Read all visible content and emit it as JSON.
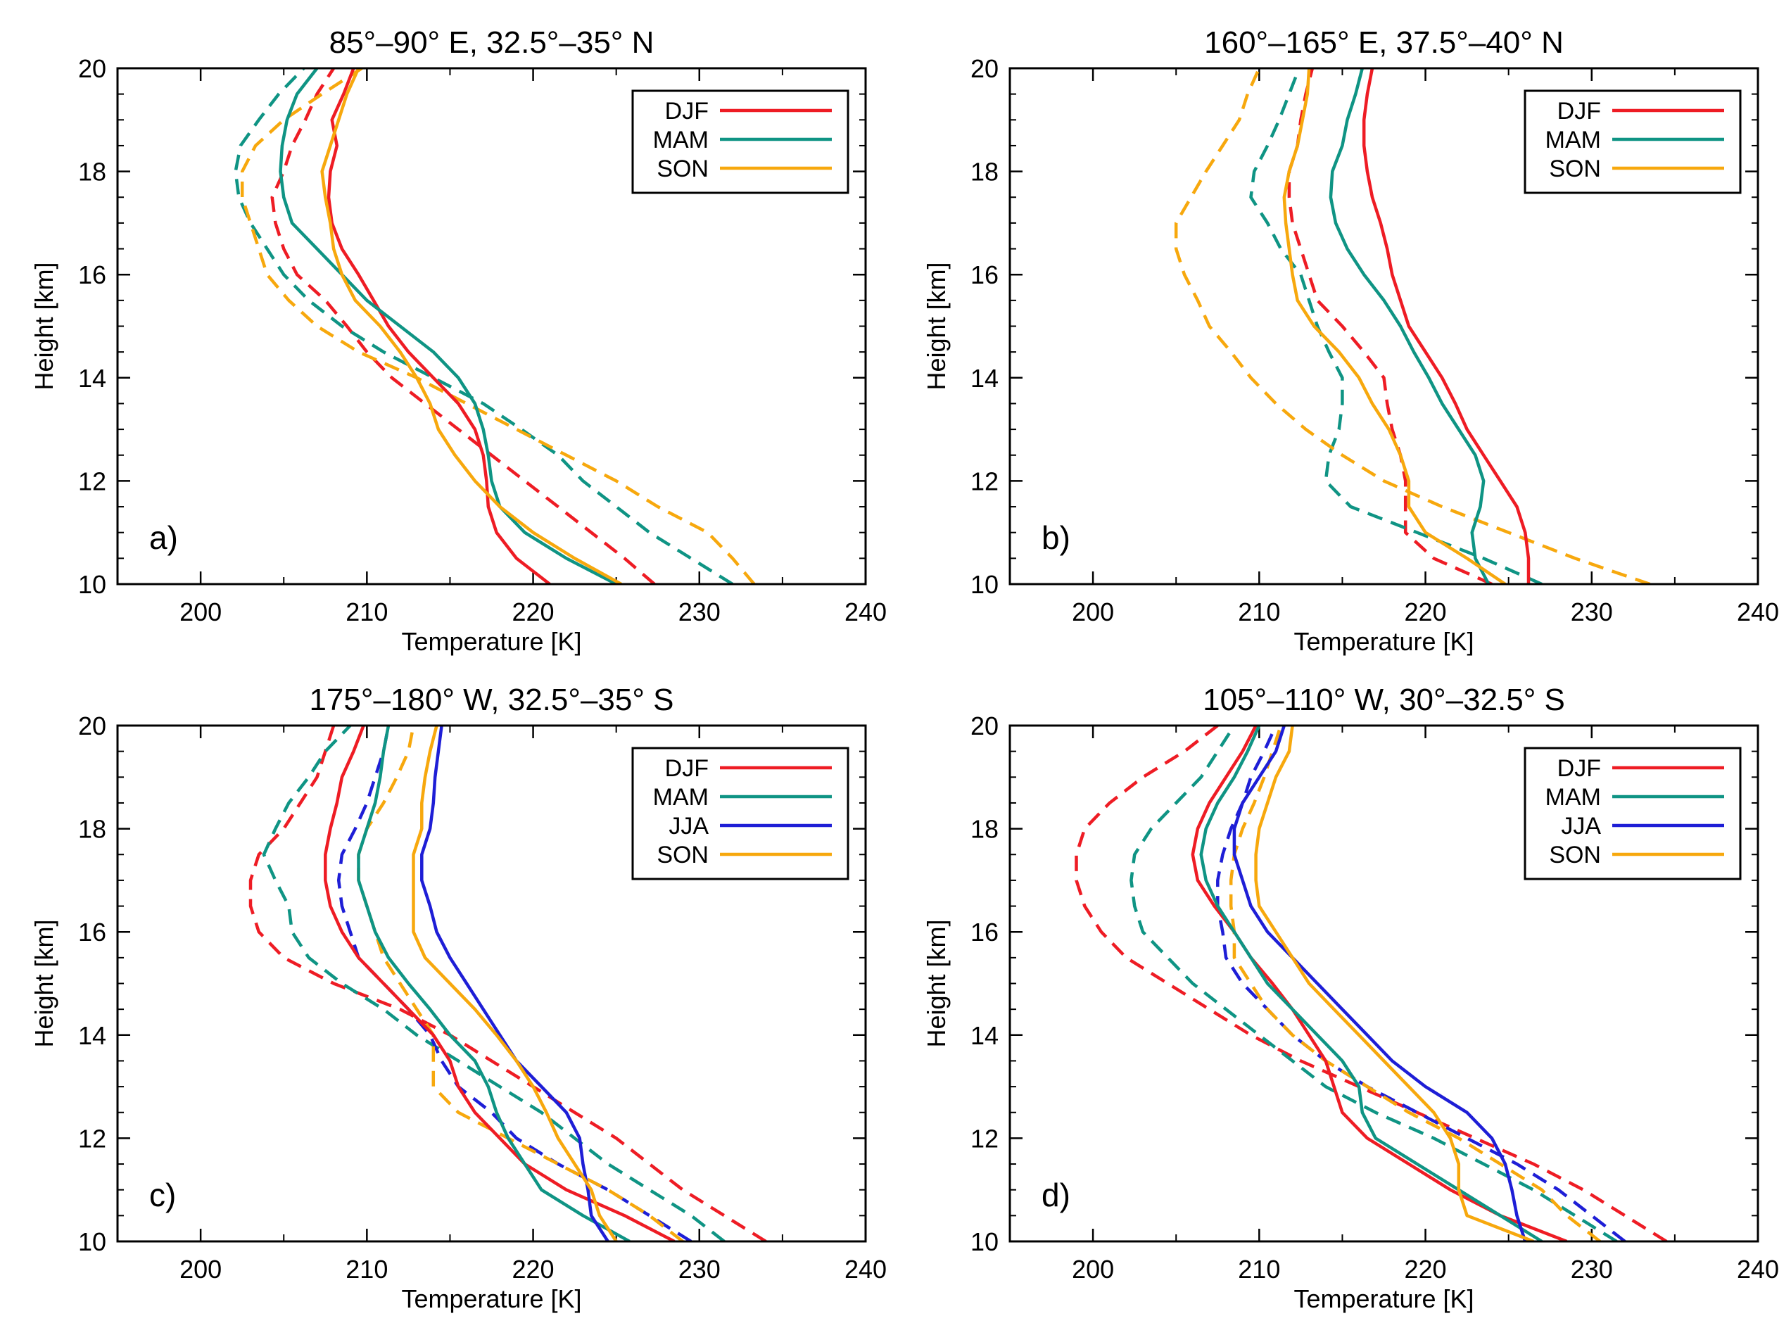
{
  "figure": {
    "description_free": true
  },
  "colors": {
    "DJF": "#ee1c24",
    "MAM": "#0f9484",
    "JJA": "#1e1ed6",
    "SON": "#f7a80d"
  },
  "chart_data": [
    {
      "type": "line",
      "panel": "a)",
      "title": "85°–90° E, 32.5°–35° N",
      "xlabel": "Temperature [K]",
      "ylabel": "Height [km]",
      "xlim": [
        195,
        240
      ],
      "ylim": [
        10,
        20
      ],
      "xticks": [
        "200",
        "210",
        "220",
        "230",
        "240"
      ],
      "yticks": [
        "10",
        "12",
        "14",
        "16",
        "18",
        "20"
      ],
      "legend": [
        "DJF",
        "MAM",
        "SON"
      ],
      "legend_position": "top-right",
      "heights": [
        10,
        10.5,
        11,
        11.5,
        12,
        12.5,
        13,
        13.5,
        14,
        14.5,
        15,
        15.5,
        16,
        16.5,
        17,
        17.5,
        18,
        18.5,
        19,
        19.5,
        20
      ],
      "series": [
        {
          "name": "DJF",
          "style": "solid",
          "values": [
            221,
            219,
            217.8,
            217.3,
            217.2,
            217,
            216.5,
            215.5,
            214,
            212.5,
            211.3,
            210.4,
            209.5,
            208.5,
            207.9,
            207.7,
            207.8,
            208.2,
            207.9,
            208.6,
            209.2
          ]
        },
        {
          "name": "MAM",
          "style": "solid",
          "values": [
            225,
            222,
            219.5,
            218,
            217.5,
            217.3,
            217,
            216.5,
            215.5,
            214,
            212,
            210,
            208.5,
            207,
            205.5,
            205,
            204.8,
            204.9,
            205.2,
            205.8,
            207
          ]
        },
        {
          "name": "SON",
          "style": "solid",
          "values": [
            225.3,
            222.5,
            220,
            218,
            216.5,
            215.3,
            214.3,
            213.8,
            213,
            212,
            210.8,
            209.3,
            208.5,
            208,
            207.8,
            207.5,
            207.3,
            207.8,
            208.3,
            208.8,
            209.5
          ]
        },
        {
          "name": "DJF",
          "style": "dashed",
          "values": [
            227.3,
            225.5,
            223.5,
            221.5,
            219.5,
            217.5,
            215.5,
            213.5,
            211.5,
            210,
            208.8,
            207.5,
            205.8,
            205,
            204.5,
            204.3,
            205,
            205.5,
            206.3,
            207,
            208
          ]
        },
        {
          "name": "MAM",
          "style": "dashed",
          "values": [
            232,
            229.5,
            227,
            225,
            223,
            221.5,
            219.3,
            217,
            214,
            211,
            208.5,
            206.5,
            205,
            204,
            203,
            202.3,
            202.1,
            202.4,
            203.5,
            204.7,
            206.2
          ]
        },
        {
          "name": "SON",
          "style": "dashed",
          "values": [
            233.3,
            232,
            230.5,
            227.5,
            225,
            222,
            219,
            216,
            213,
            209.5,
            207,
            205.3,
            204,
            203.5,
            203,
            202.5,
            202.5,
            203.3,
            205,
            207.3,
            209.7
          ]
        }
      ]
    },
    {
      "type": "line",
      "panel": "b)",
      "title": "160°–165° E, 37.5°–40° N",
      "xlabel": "Temperature [K]",
      "ylabel": "Height [km]",
      "xlim": [
        195,
        240
      ],
      "ylim": [
        10,
        20
      ],
      "xticks": [
        "200",
        "210",
        "220",
        "230",
        "240"
      ],
      "yticks": [
        "10",
        "12",
        "14",
        "16",
        "18",
        "20"
      ],
      "legend": [
        "DJF",
        "MAM",
        "SON"
      ],
      "legend_position": "top-right",
      "heights": [
        10,
        10.5,
        11,
        11.5,
        12,
        12.5,
        13,
        13.5,
        14,
        14.5,
        15,
        15.5,
        16,
        16.5,
        17,
        17.5,
        18,
        18.5,
        19,
        19.5,
        20
      ],
      "series": [
        {
          "name": "DJF",
          "style": "solid",
          "values": [
            226.2,
            226.2,
            226,
            225.5,
            224.5,
            223.5,
            222.5,
            221.8,
            221,
            220,
            219,
            218.5,
            218,
            217.7,
            217.3,
            216.8,
            216.5,
            216.3,
            216.3,
            216.5,
            216.8
          ]
        },
        {
          "name": "MAM",
          "style": "solid",
          "values": [
            223.8,
            223,
            222.8,
            223.3,
            223.5,
            223,
            222,
            221,
            220.2,
            219.3,
            218.5,
            217.5,
            216.3,
            215.3,
            214.6,
            214.3,
            214.4,
            215,
            215.3,
            215.8,
            216.2
          ]
        },
        {
          "name": "SON",
          "style": "solid",
          "values": [
            224.8,
            222.5,
            220,
            219,
            219,
            218.5,
            217.8,
            216.8,
            216,
            214.8,
            213.3,
            212.3,
            212,
            211.8,
            211.6,
            211.5,
            211.8,
            212.3,
            212.6,
            212.9,
            213
          ]
        },
        {
          "name": "DJF",
          "style": "dashed",
          "values": [
            224,
            220.5,
            218.8,
            218.8,
            218.8,
            218.5,
            218,
            217.7,
            217.5,
            216.3,
            215,
            213.5,
            213,
            212.5,
            212,
            211.8,
            211.8,
            212.3,
            212.5,
            212.8,
            213.2
          ]
        },
        {
          "name": "MAM",
          "style": "dashed",
          "values": [
            227,
            223.5,
            219.5,
            215.5,
            214,
            214.2,
            214.8,
            215,
            215,
            214.2,
            213.5,
            213,
            212.5,
            211.3,
            210.5,
            209.5,
            209.7,
            210.5,
            211.2,
            211.8,
            212.4
          ]
        },
        {
          "name": "SON",
          "style": "dashed",
          "values": [
            233.5,
            229,
            225,
            221,
            217.5,
            215,
            212.8,
            211,
            209.5,
            208.3,
            207,
            206.3,
            205.5,
            205,
            205,
            205.9,
            206.8,
            207.8,
            208.8,
            209.3,
            210
          ]
        }
      ]
    },
    {
      "type": "line",
      "panel": "c)",
      "title": "175°–180° W, 32.5°–35° S",
      "xlabel": "Temperature [K]",
      "ylabel": "Height [km]",
      "xlim": [
        195,
        240
      ],
      "ylim": [
        10,
        20
      ],
      "xticks": [
        "200",
        "210",
        "220",
        "230",
        "240"
      ],
      "yticks": [
        "10",
        "12",
        "14",
        "16",
        "18",
        "20"
      ],
      "legend": [
        "DJF",
        "MAM",
        "JJA",
        "SON"
      ],
      "legend_position": "top-right",
      "heights": [
        10,
        10.5,
        11,
        11.5,
        12,
        12.5,
        13,
        13.5,
        14,
        14.5,
        15,
        15.5,
        16,
        16.5,
        17,
        17.5,
        18,
        18.5,
        19,
        19.5,
        20
      ],
      "series": [
        {
          "name": "DJF",
          "style": "solid",
          "values": [
            228.5,
            225.5,
            222,
            219.5,
            218,
            216.5,
            215.5,
            215,
            214,
            212.5,
            211,
            209.5,
            208.5,
            207.8,
            207.5,
            207.5,
            207.8,
            208.2,
            208.5,
            209.2,
            209.8
          ]
        },
        {
          "name": "MAM",
          "style": "solid",
          "values": [
            225.8,
            223,
            220.5,
            219.5,
            218.5,
            217.8,
            217.3,
            216.5,
            215,
            213.8,
            212.5,
            211.3,
            210.5,
            210,
            209.5,
            209.5,
            210,
            210.5,
            210.8,
            211,
            211.3
          ]
        },
        {
          "name": "JJA",
          "style": "solid",
          "values": [
            224.5,
            223.5,
            223.3,
            223,
            222.8,
            222,
            220.5,
            219,
            218,
            217,
            216,
            215,
            214.2,
            213.8,
            213.3,
            213.3,
            213.8,
            214,
            214.1,
            214.3,
            214.5
          ]
        },
        {
          "name": "SON",
          "style": "solid",
          "values": [
            225,
            224,
            223.5,
            222.5,
            221.5,
            220.8,
            220,
            219,
            217.8,
            216.5,
            215,
            213.5,
            212.8,
            212.8,
            212.8,
            212.8,
            213.3,
            213.3,
            213.5,
            213.8,
            214.2
          ]
        },
        {
          "name": "DJF",
          "style": "dashed",
          "values": [
            234,
            231.5,
            229,
            227,
            225,
            222.5,
            220,
            217.5,
            215,
            212,
            208,
            205,
            203.5,
            203,
            203,
            203.5,
            205,
            206,
            207,
            207.5,
            208
          ]
        },
        {
          "name": "MAM",
          "style": "dashed",
          "values": [
            231.5,
            229.5,
            227,
            224.5,
            222.5,
            220.5,
            218,
            215.5,
            213,
            211,
            208.5,
            206.5,
            205.5,
            205.3,
            204.5,
            203.8,
            204.5,
            205.3,
            206.5,
            207.5,
            209
          ]
        },
        {
          "name": "JJA",
          "style": "dashed",
          "values": [
            229.5,
            227,
            224.5,
            221.5,
            219,
            217.5,
            215.5,
            214.5,
            213.8,
            212.5,
            211,
            209.5,
            209,
            208.5,
            208.3,
            208.5,
            209.3,
            210,
            210.5,
            211,
            211.3
          ]
        },
        {
          "name": "SON",
          "style": "dashed",
          "values": [
            229,
            227,
            224.5,
            221.5,
            218.5,
            215.5,
            214,
            214,
            214,
            213,
            212,
            211,
            210.5,
            210,
            209.5,
            209.5,
            210,
            211,
            211.8,
            212.5,
            212.8
          ]
        }
      ]
    },
    {
      "type": "line",
      "panel": "d)",
      "title": "105°–110° W, 30°–32.5° S",
      "xlabel": "Temperature [K]",
      "ylabel": "Height [km]",
      "xlim": [
        195,
        240
      ],
      "ylim": [
        10,
        20
      ],
      "xticks": [
        "200",
        "210",
        "220",
        "230",
        "240"
      ],
      "yticks": [
        "10",
        "12",
        "14",
        "16",
        "18",
        "20"
      ],
      "legend": [
        "DJF",
        "MAM",
        "JJA",
        "SON"
      ],
      "legend_position": "top-right",
      "heights": [
        10,
        10.5,
        11,
        11.5,
        12,
        12.5,
        13,
        13.5,
        14,
        14.5,
        15,
        15.5,
        16,
        16.5,
        17,
        17.5,
        18,
        18.5,
        19,
        19.5,
        20
      ],
      "series": [
        {
          "name": "DJF",
          "style": "solid",
          "values": [
            228.5,
            224.5,
            221.5,
            219,
            216.5,
            215,
            214.5,
            214,
            213,
            212,
            210.8,
            209.5,
            208.5,
            207.3,
            206.3,
            206,
            206.3,
            207,
            208,
            209,
            209.8
          ]
        },
        {
          "name": "MAM",
          "style": "solid",
          "values": [
            227,
            224.5,
            222,
            219.5,
            217,
            216.2,
            216,
            215,
            213.5,
            212,
            210.5,
            209.5,
            208.5,
            207.5,
            206.8,
            206.5,
            206.8,
            207.5,
            208.5,
            209.3,
            210
          ]
        },
        {
          "name": "JJA",
          "style": "solid",
          "values": [
            226,
            225.5,
            225.2,
            224.8,
            224,
            222.5,
            220,
            218,
            216.5,
            215,
            213.5,
            212,
            210.5,
            209.5,
            209,
            208.5,
            208.5,
            209,
            210,
            211,
            211.5
          ]
        },
        {
          "name": "SON",
          "style": "solid",
          "values": [
            226.5,
            222.5,
            222,
            222,
            221.5,
            220.5,
            219,
            217.5,
            216,
            214.5,
            213,
            212,
            211,
            210,
            209.8,
            209.8,
            210,
            210.5,
            211,
            211.8,
            212
          ]
        },
        {
          "name": "DJF",
          "style": "dashed",
          "values": [
            234.5,
            232,
            229.5,
            226.5,
            223,
            219.5,
            216,
            212.5,
            209.5,
            207,
            204.5,
            202,
            200.5,
            199.5,
            199,
            199,
            199.5,
            201,
            203,
            205.5,
            207.5
          ]
        },
        {
          "name": "MAM",
          "style": "dashed",
          "values": [
            231.5,
            229,
            226.5,
            223.5,
            220.5,
            217,
            214,
            212,
            210,
            208,
            206,
            204.5,
            203,
            202.5,
            202.3,
            202.5,
            203.5,
            205,
            206.5,
            207.5,
            208.5
          ]
        },
        {
          "name": "JJA",
          "style": "dashed",
          "values": [
            232,
            230,
            228,
            225.5,
            222.5,
            219.5,
            216.5,
            214,
            212,
            210.5,
            209,
            208,
            207.8,
            207.5,
            207.5,
            207.8,
            208.3,
            209,
            209.5,
            210.3,
            211
          ]
        },
        {
          "name": "SON",
          "style": "dashed",
          "values": [
            230.5,
            228.5,
            227,
            224.5,
            222,
            219,
            216.5,
            214,
            212,
            210.5,
            209.5,
            208.5,
            208.5,
            208.3,
            208.3,
            208.5,
            209,
            209.7,
            210.3,
            210.8,
            211.3
          ]
        }
      ]
    }
  ]
}
